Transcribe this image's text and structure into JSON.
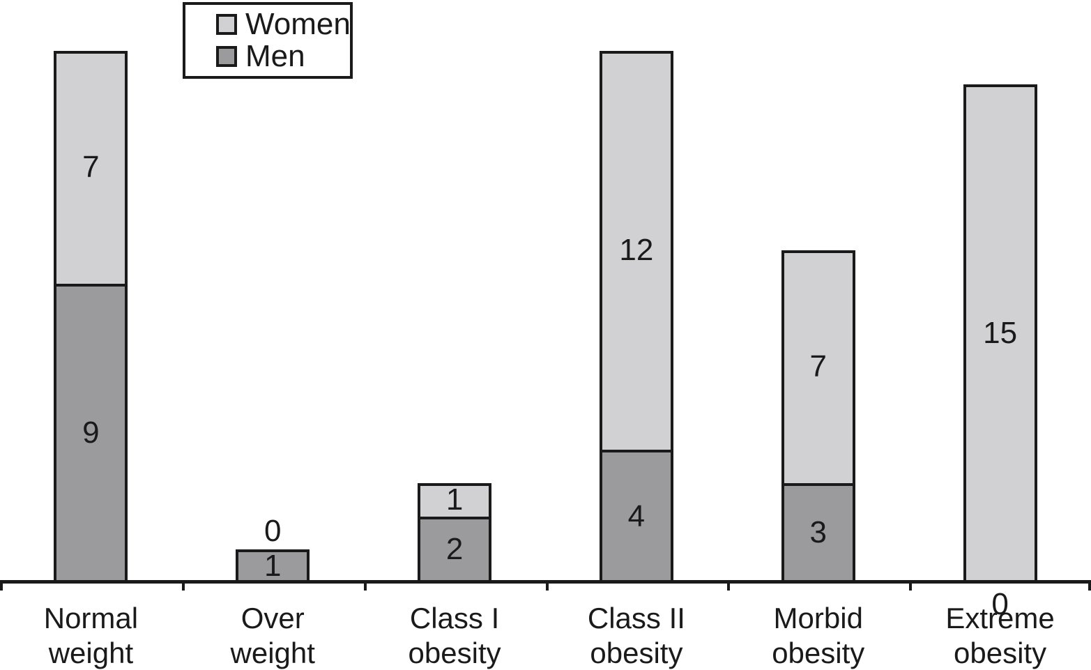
{
  "figure": {
    "background": "#ffffff"
  },
  "colors": {
    "women": "#d1d1d3",
    "men": "#9b9b9d",
    "outline": "#1a1a1a",
    "text": "#1a1a1a"
  },
  "legend": {
    "entries": [
      {
        "label": "Women",
        "color": "#d1d1d3"
      },
      {
        "label": "Men",
        "color": "#9b9b9d"
      }
    ]
  },
  "chart_data": {
    "type": "bar",
    "stacked": true,
    "title": "",
    "xlabel": "",
    "ylabel": "",
    "y_axis_shown": false,
    "grid": false,
    "legend_position": "top-left",
    "ylim": [
      0,
      16
    ],
    "categories": [
      "Normal weight",
      "Over weight",
      "Class I obesity",
      "Class II obesity",
      "Morbid obesity",
      "Extreme obesity"
    ],
    "category_lines": [
      [
        "Normal",
        "weight"
      ],
      [
        "Over",
        "weight"
      ],
      [
        "Class I",
        "obesity"
      ],
      [
        "Class II",
        "obesity"
      ],
      [
        "Morbid",
        "obesity"
      ],
      [
        "Extreme",
        "obesity"
      ]
    ],
    "series": [
      {
        "name": "Men",
        "values": [
          9,
          1,
          2,
          4,
          3,
          0
        ]
      },
      {
        "name": "Women",
        "values": [
          7,
          0,
          1,
          12,
          7,
          15
        ]
      }
    ],
    "value_labels": {
      "Men": [
        "9",
        "1",
        "2",
        "4",
        "3",
        "0"
      ],
      "Women": [
        "7",
        "0",
        "1",
        "12",
        "7",
        "15"
      ]
    }
  }
}
